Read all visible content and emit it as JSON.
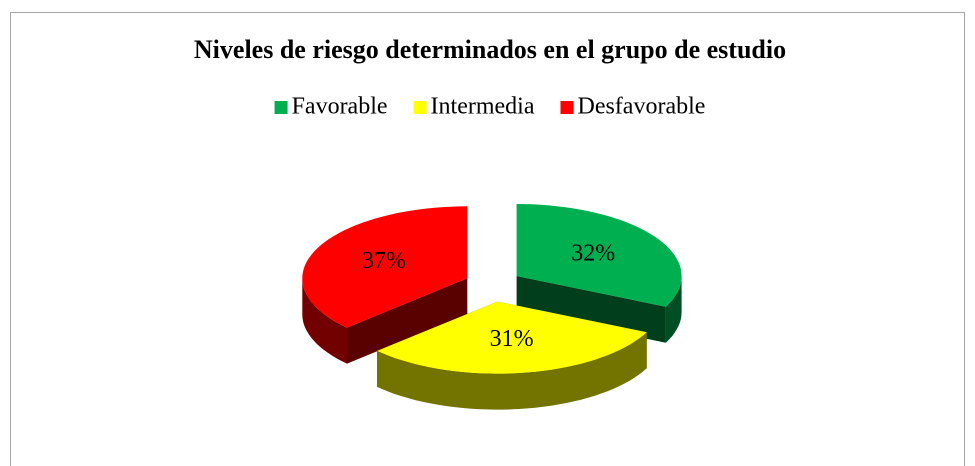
{
  "chart_data": {
    "type": "pie",
    "title": "Niveles de riesgo determinados en el grupo de estudio",
    "categories": [
      "Favorable",
      "Intermedia",
      "Desfavorable"
    ],
    "values": [
      32,
      31,
      37
    ],
    "value_labels": [
      "32%",
      "31%",
      "37%"
    ],
    "colors": [
      "#00b050",
      "#ffff00",
      "#ff0000"
    ],
    "legend": "top"
  }
}
